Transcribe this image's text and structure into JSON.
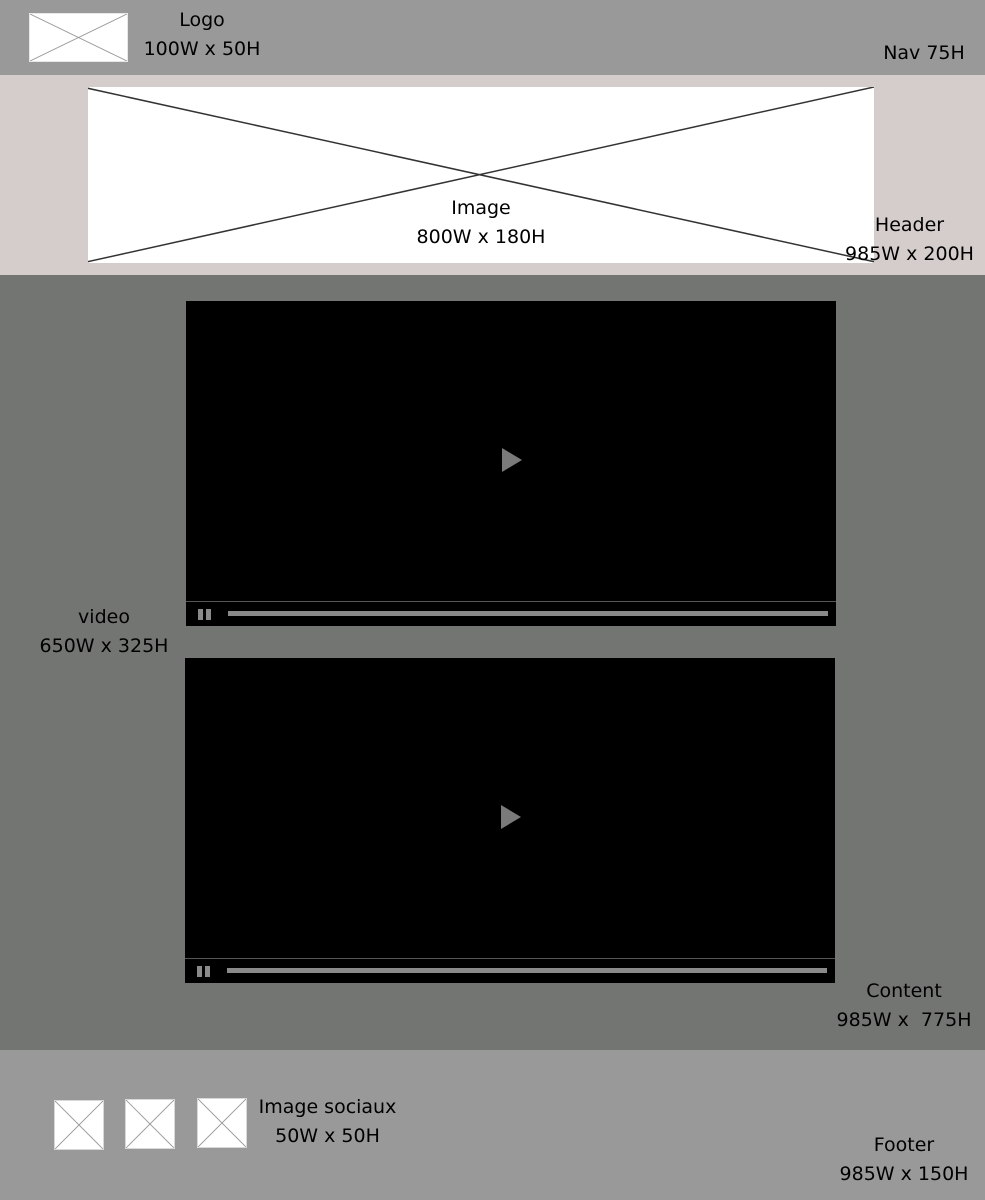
{
  "colors": {
    "nav_bg": "#999999",
    "header_bg": "#d5cccc",
    "content_bg": "#737572",
    "footer_bg": "#999999",
    "video_bg": "#000000"
  },
  "nav": {
    "logo_title": "Logo",
    "logo_size": "100W x 50H",
    "label": "Nav 75H"
  },
  "header": {
    "image_title": "Image",
    "image_size": "800W x 180H",
    "label_title": "Header",
    "label_size": "985W x 200H"
  },
  "content": {
    "video_title": "video",
    "video_size": "650W x 325H",
    "videos": [
      {
        "icon": "play-icon",
        "control_icon": "pause-icon"
      },
      {
        "icon": "play-icon",
        "control_icon": "pause-icon"
      }
    ],
    "label_title": "Content",
    "label_size": "985W x  775H"
  },
  "footer": {
    "social_title": "Image sociaux",
    "social_size": "50W x 50H",
    "social_icons": [
      "social-image-placeholder",
      "social-image-placeholder",
      "social-image-placeholder"
    ],
    "label_title": "Footer",
    "label_size": "985W x 150H"
  }
}
